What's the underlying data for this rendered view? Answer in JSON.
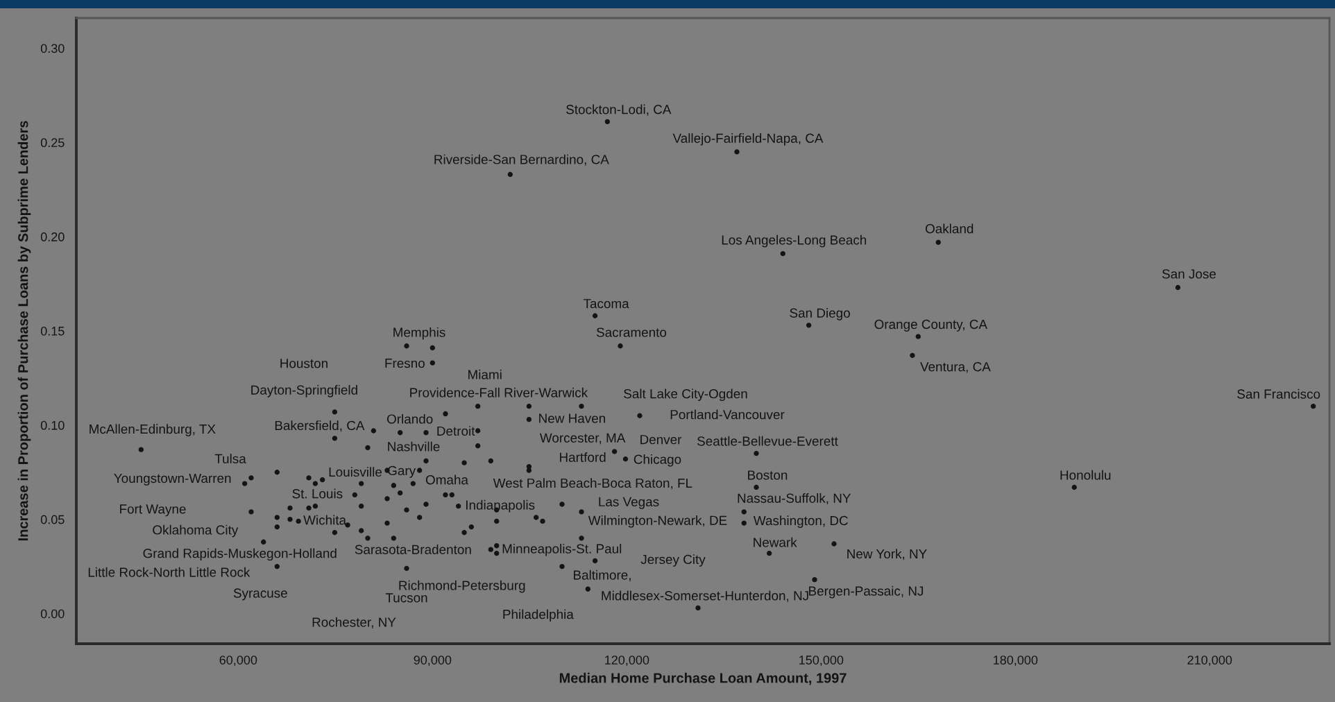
{
  "chart_data": {
    "type": "scatter",
    "xlabel": "Median Home Purchase Loan Amount, 1997",
    "ylabel": "Increase in Proportion of Purchase Loans by Subprime Lenders",
    "color": "#141414",
    "marker": "circle",
    "x": [
      45000,
      61000,
      62000,
      62000,
      66000,
      63900,
      66000,
      66000,
      66000,
      68000,
      68000,
      69300,
      70900,
      71900,
      70900,
      71900,
      73000,
      74900,
      74900,
      74900,
      76900,
      78000,
      79000,
      79000,
      79000,
      80000,
      80000,
      80900,
      83000,
      83000,
      83000,
      84000,
      84000,
      85000,
      85000,
      86000,
      86000,
      86000,
      90000,
      90000,
      87000,
      88000,
      88000,
      89000,
      89000,
      89000,
      92000,
      92000,
      93000,
      97000,
      97000,
      97000,
      94900,
      99000,
      104900,
      104900,
      104900,
      104900,
      113000,
      122000,
      118100,
      119800,
      140000,
      140000,
      138100,
      138100,
      142000,
      152000,
      149000,
      131000,
      114000,
      115100,
      113000,
      113000,
      110000,
      110000,
      106000,
      107000,
      99900,
      99900,
      94000,
      96000,
      94900,
      99000,
      99900,
      99900,
      119000,
      117000,
      137000,
      102000,
      144100,
      115100,
      148100,
      168100,
      205100,
      165000,
      164100,
      226000,
      189100
    ],
    "values": [
      0.087,
      0.069,
      0.072,
      0.054,
      0.075,
      0.038,
      0.051,
      0.046,
      0.025,
      0.056,
      0.05,
      0.049,
      0.056,
      0.057,
      0.072,
      0.069,
      0.071,
      0.107,
      0.093,
      0.043,
      0.047,
      0.063,
      0.069,
      0.057,
      0.044,
      0.04,
      0.088,
      0.097,
      0.076,
      0.061,
      0.048,
      0.068,
      0.04,
      0.096,
      0.064,
      0.055,
      0.024,
      0.142,
      0.141,
      0.133,
      0.069,
      0.076,
      0.051,
      0.096,
      0.081,
      0.058,
      0.106,
      0.063,
      0.063,
      0.11,
      0.097,
      0.089,
      0.08,
      0.081,
      0.11,
      0.103,
      0.078,
      0.076,
      0.11,
      0.105,
      0.086,
      0.082,
      0.085,
      0.067,
      0.054,
      0.048,
      0.032,
      0.037,
      0.018,
      0.003,
      0.013,
      0.028,
      0.04,
      0.054,
      0.058,
      0.025,
      0.051,
      0.049,
      0.055,
      0.049,
      0.057,
      0.046,
      0.043,
      0.034,
      0.036,
      0.032,
      0.142,
      0.261,
      0.245,
      0.233,
      0.191,
      0.158,
      0.153,
      0.197,
      0.173,
      0.147,
      0.137,
      0.11,
      0.067
    ],
    "xlim": [
      35000,
      228500
    ],
    "ylim": [
      -0.016,
      0.316
    ],
    "xticks": [
      {
        "value": 60000,
        "label": "60,000"
      },
      {
        "value": 90000,
        "label": "90,000"
      },
      {
        "value": 120000,
        "label": "120,000"
      },
      {
        "value": 150000,
        "label": "150,000"
      },
      {
        "value": 180000,
        "label": "180,000"
      },
      {
        "value": 210000,
        "label": "210,000"
      }
    ],
    "yticks": [
      {
        "value": 0,
        "label": "0.00"
      },
      {
        "value": 0.05,
        "label": "0.05"
      },
      {
        "value": 0.1,
        "label": "0.10"
      },
      {
        "value": 0.15,
        "label": "0.15"
      },
      {
        "value": 0.2,
        "label": "0.20"
      },
      {
        "value": 0.25,
        "label": "0.25"
      },
      {
        "value": 0.3,
        "label": "0.30"
      }
    ],
    "annotations": [
      {
        "text": "McAllen-Edinburg, TX",
        "x": 45000,
        "y": 0.087
      },
      {
        "text": "Youngstown-Warren",
        "x": 61000,
        "y": 0.069
      },
      {
        "text": "Tulsa",
        "x": 62000,
        "y": 0.072
      },
      "Fort Wayne",
      {
        "text": "Oklahoma City",
        "x": 66000,
        "y": 0.046
      },
      {
        "text": "Grand Rapids-Muskegon-Holland",
        "x": 63900,
        "y": 0.038
      },
      {
        "text": "Little Rock-North Little Rock",
        "x": 66000,
        "y": 0.025
      },
      {
        "text": "Syracuse",
        "x": 66000,
        "y": 0.025
      },
      "Houston",
      {
        "text": "Dayton-Springfield",
        "x": 74900,
        "y": 0.107
      },
      {
        "text": "Bakersfield, CA",
        "x": 80900,
        "y": 0.097
      },
      {
        "text": "St. Louis",
        "x": 78000,
        "y": 0.063
      },
      {
        "text": "Wichita",
        "x": 69300,
        "y": 0.049
      },
      {
        "text": "Louisville",
        "x": 83000,
        "y": 0.076
      },
      {
        "text": "Gary",
        "x": 88000,
        "y": 0.076
      },
      {
        "text": "Memphis",
        "x": 86000,
        "y": 0.142
      },
      {
        "text": "Fresno",
        "x": 90000,
        "y": 0.133
      },
      {
        "text": "Orlando",
        "x": 85000,
        "y": 0.096
      },
      {
        "text": "Nashville",
        "x": 80000,
        "y": 0.088
      },
      {
        "text": "Sarasota-Bradenton",
        "x": 84000,
        "y": 0.04
      },
      {
        "text": "Tucson",
        "x": 86000,
        "y": 0.024
      },
      "Rochester, NY",
      {
        "text": "Miami",
        "x": 97000,
        "y": 0.11
      },
      {
        "text": "Providence-Fall River-Warwick",
        "x": 104900,
        "y": 0.11
      },
      {
        "text": "Detroit",
        "x": 97000,
        "y": 0.097
      },
      {
        "text": "Omaha",
        "x": 92000,
        "y": 0.063
      },
      {
        "text": "Indianapolis",
        "x": 94000,
        "y": 0.057
      },
      {
        "text": "West Palm Beach-Boca Raton, FL",
        "x": 104900,
        "y": 0.076
      },
      {
        "text": "Minneapolis-St. Paul",
        "x": 99900,
        "y": 0.036
      },
      {
        "text": "Richmond-Petersburg",
        "x": 99900,
        "y": 0.032
      },
      {
        "text": "Philadelphia",
        "x": 114000,
        "y": 0.013
      },
      {
        "text": "New Haven",
        "x": 104900,
        "y": 0.103
      },
      {
        "text": "Worcester, MA",
        "x": 118100,
        "y": 0.086
      },
      {
        "text": "Hartford",
        "x": 118100,
        "y": 0.086
      },
      {
        "text": "Denver",
        "x": 122000,
        "y": 0.105
      },
      {
        "text": "Chicago",
        "x": 119800,
        "y": 0.082
      },
      {
        "text": "Salt Lake City-Ogden",
        "x": 122000,
        "y": 0.105
      },
      {
        "text": "Portland-Vancouver",
        "x": 122000,
        "y": 0.105
      },
      {
        "text": "Seattle-Bellevue-Everett",
        "x": 140000,
        "y": 0.085
      },
      {
        "text": "Boston",
        "x": 140000,
        "y": 0.067
      },
      {
        "text": "Nassau-Suffolk, NY",
        "x": 138100,
        "y": 0.054
      },
      {
        "text": "Las Vegas",
        "x": 110000,
        "y": 0.058
      },
      {
        "text": "Wilmington-Newark, DE",
        "x": 113000,
        "y": 0.054
      },
      {
        "text": "Washington, DC",
        "x": 138100,
        "y": 0.048
      },
      {
        "text": "Newark",
        "x": 142000,
        "y": 0.032
      },
      {
        "text": "New York, NY",
        "x": 152000,
        "y": 0.037
      },
      "Jersey City",
      {
        "text": "Baltimore,",
        "x": 110000,
        "y": 0.025
      },
      {
        "text": "Middlesex-Somerset-Hunterdon, NJ",
        "x": 131000,
        "y": 0.003
      },
      {
        "text": "Bergen-Passaic, NJ",
        "x": 149000,
        "y": 0.018
      },
      {
        "text": "Stockton-Lodi, CA",
        "x": 117000,
        "y": 0.261
      },
      {
        "text": "Vallejo-Fairfield-Napa, CA",
        "x": 137000,
        "y": 0.245
      },
      {
        "text": "Riverside-San Bernardino, CA",
        "x": 102000,
        "y": 0.233
      },
      {
        "text": "Los Angeles-Long Beach",
        "x": 144100,
        "y": 0.191
      },
      {
        "text": "Tacoma",
        "x": 115100,
        "y": 0.158
      },
      {
        "text": "Sacramento",
        "x": 119000,
        "y": 0.142
      },
      {
        "text": "San Diego",
        "x": 148100,
        "y": 0.153
      },
      {
        "text": "Orange County, CA",
        "x": 165000,
        "y": 0.147
      },
      {
        "text": "Ventura, CA",
        "x": 164100,
        "y": 0.137
      },
      {
        "text": "Oakland",
        "x": 168100,
        "y": 0.197
      },
      {
        "text": "San Jose",
        "x": 205100,
        "y": 0.173
      },
      {
        "text": "Honolulu",
        "x": 189100,
        "y": 0.067
      },
      {
        "text": "San Francisco",
        "x": 226000,
        "y": 0.11
      }
    ]
  }
}
